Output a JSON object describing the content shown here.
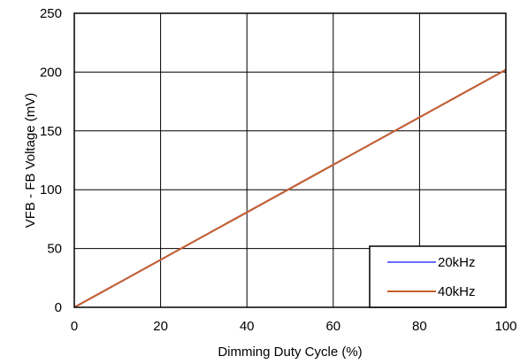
{
  "chart_data": {
    "type": "line",
    "title": "",
    "xlabel": "Dimming Duty Cycle (%)",
    "ylabel": "VFB - FB Voltage (mV)",
    "xlim": [
      0,
      100
    ],
    "ylim": [
      0,
      250
    ],
    "x_ticks": [
      0,
      20,
      40,
      60,
      80,
      100
    ],
    "y_ticks": [
      0,
      50,
      100,
      150,
      200,
      250
    ],
    "x_tick_labels": [
      "0",
      "20",
      "40",
      "60",
      "80",
      "100"
    ],
    "y_tick_labels": [
      "0",
      "50",
      "100",
      "150",
      "200",
      "250"
    ],
    "grid": true,
    "legend_position": "bottom-right",
    "series": [
      {
        "name": "20kHz",
        "color": "#6b6bff",
        "x": [
          0,
          100
        ],
        "y": [
          0,
          202
        ]
      },
      {
        "name": "40kHz",
        "color": "#c8602a",
        "x": [
          0,
          100
        ],
        "y": [
          0,
          202
        ]
      }
    ]
  }
}
